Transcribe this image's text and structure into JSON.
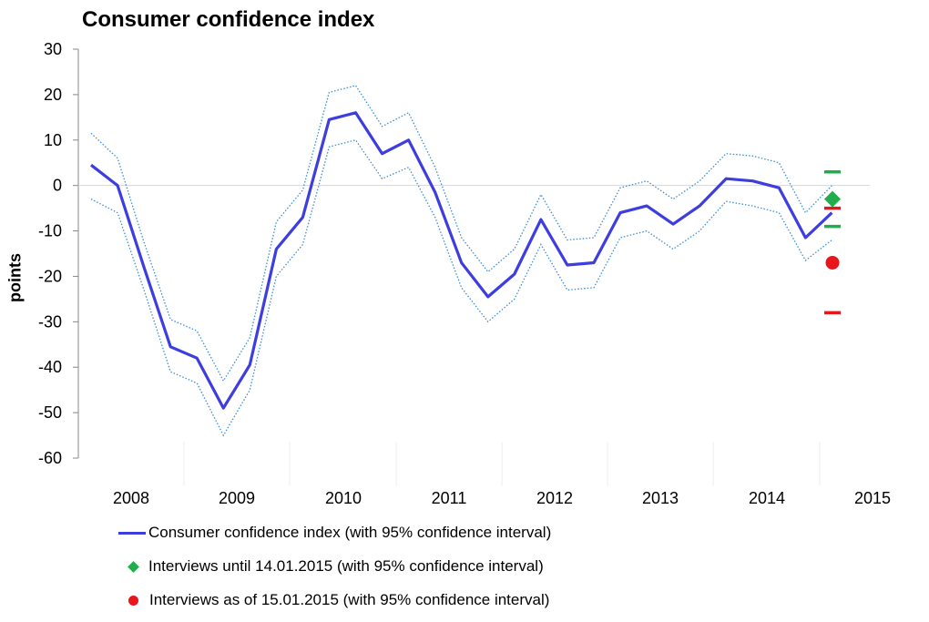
{
  "title": "Consumer confidence index",
  "chart_data": {
    "type": "line",
    "title": "Consumer confidence index",
    "ylabel": "points",
    "xlabel": "",
    "ylim": [
      -60,
      30
    ],
    "yticks": [
      "30",
      "20",
      "10",
      "0",
      "-10",
      "-20",
      "-30",
      "-40",
      "-50",
      "-60"
    ],
    "year_labels": [
      "2008",
      "2009",
      "2010",
      "2011",
      "2012",
      "2013",
      "2014",
      "2015"
    ],
    "grid": "horizontal line at 0 only",
    "legend_position": "bottom",
    "series": [
      {
        "name": "Consumer confidence index (with 95% confidence interval)",
        "color": "#3d3de0",
        "values": [
          4.5,
          0,
          -18,
          -35.5,
          -38,
          -49,
          -39.5,
          -14,
          -7,
          14.5,
          16,
          7,
          10,
          -1.5,
          -17,
          -24.5,
          -19.5,
          -7.5,
          -17.5,
          -17,
          -6,
          -4.5,
          -8.5,
          -4.5,
          1.5,
          1,
          -0.5,
          -11.5,
          -6
        ],
        "lower": [
          -3,
          -6,
          -23,
          -41,
          -43.5,
          -55,
          -45,
          -20,
          -13,
          8.5,
          10,
          1.5,
          4,
          -7,
          -22.5,
          -30,
          -25,
          -13,
          -23,
          -22.5,
          -11.5,
          -10,
          -14,
          -10,
          -3.5,
          -4.5,
          -6,
          -16.5,
          -12
        ],
        "upper": [
          11.5,
          6,
          -12.5,
          -29.5,
          -32,
          -43,
          -33.5,
          -8,
          -1,
          20.5,
          22,
          13,
          16,
          4,
          -11.5,
          -19,
          -14,
          -2,
          -12,
          -11.5,
          -0.5,
          1,
          -3,
          1,
          7,
          6.5,
          5,
          -6,
          0
        ]
      },
      {
        "name": "Interviews until 14.01.2015 (with 95% confidence interval)",
        "color": "#1fae4b",
        "point": -3,
        "lower": -9,
        "upper": 3
      },
      {
        "name": "Interviews as of 15.01.2015 (with 95% confidence interval)",
        "color": "#e8151b",
        "point": -17,
        "lower": -28,
        "upper": -5
      }
    ]
  },
  "legend": {
    "items": [
      "Consumer confidence index (with 95% confidence interval)",
      "Interviews until 14.01.2015 (with 95% confidence interval)",
      "Interviews as of 15.01.2015 (with 95% confidence interval)"
    ]
  }
}
